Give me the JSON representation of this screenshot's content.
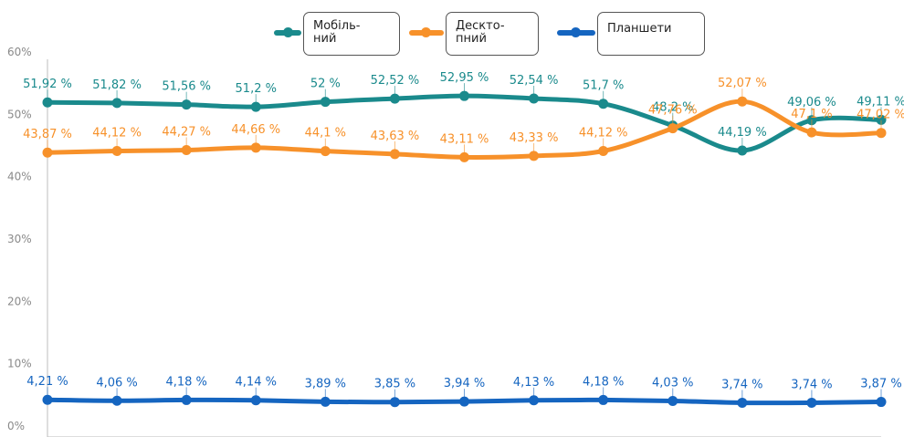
{
  "chart_data": {
    "type": "line",
    "title": "",
    "xlabel": "",
    "ylabel": "",
    "ylim": [
      0,
      60
    ],
    "yticks": [
      "0%",
      "10%",
      "20%",
      "30%",
      "40%",
      "50%",
      "60%"
    ],
    "legend_position": "top",
    "grid": false,
    "series": [
      {
        "name": "Мобіль-ний",
        "legend_lines": [
          "Мобіль-",
          "ний"
        ],
        "color": "#1a8a8c",
        "values": [
          51.92,
          51.82,
          51.56,
          51.2,
          52,
          52.52,
          52.95,
          52.54,
          51.7,
          48.2,
          44.19,
          49.06,
          49.11
        ],
        "labels": [
          "51,92 %",
          "51,82 %",
          "51,56 %",
          "51,2 %",
          "52 %",
          "52,52 %",
          "52,95 %",
          "52,54 %",
          "51,7 %",
          "48,2 %",
          "44,19 %",
          "49,06 %",
          "49,11 %"
        ]
      },
      {
        "name": "Десктопний",
        "legend_lines": [
          "Десктo-",
          "пний"
        ],
        "color": "#f7912a",
        "values": [
          43.87,
          44.12,
          44.27,
          44.66,
          44.1,
          43.63,
          43.11,
          43.33,
          44.12,
          47.76,
          52.07,
          47.1,
          47.02
        ],
        "labels": [
          "43,87 %",
          "44,12 %",
          "44,27 %",
          "44,66 %",
          "44,1 %",
          "43,63 %",
          "43,11 %",
          "43,33 %",
          "44,12 %",
          "47,76 %",
          "52,07 %",
          "47,1 %",
          "47,02 %"
        ]
      },
      {
        "name": "Планшети",
        "legend_lines": [
          "Планшети"
        ],
        "color": "#1565c0",
        "values": [
          4.21,
          4.06,
          4.18,
          4.14,
          3.89,
          3.85,
          3.94,
          4.13,
          4.18,
          4.03,
          3.74,
          3.74,
          3.87
        ],
        "labels": [
          "4,21 %",
          "4,06 %",
          "4,18 %",
          "4,14 %",
          "3,89 %",
          "3,85 %",
          "3,94 %",
          "4,13 %",
          "4,18 %",
          "4,03 %",
          "3,74 %",
          "3,74 %",
          "3,87 %"
        ]
      }
    ]
  }
}
